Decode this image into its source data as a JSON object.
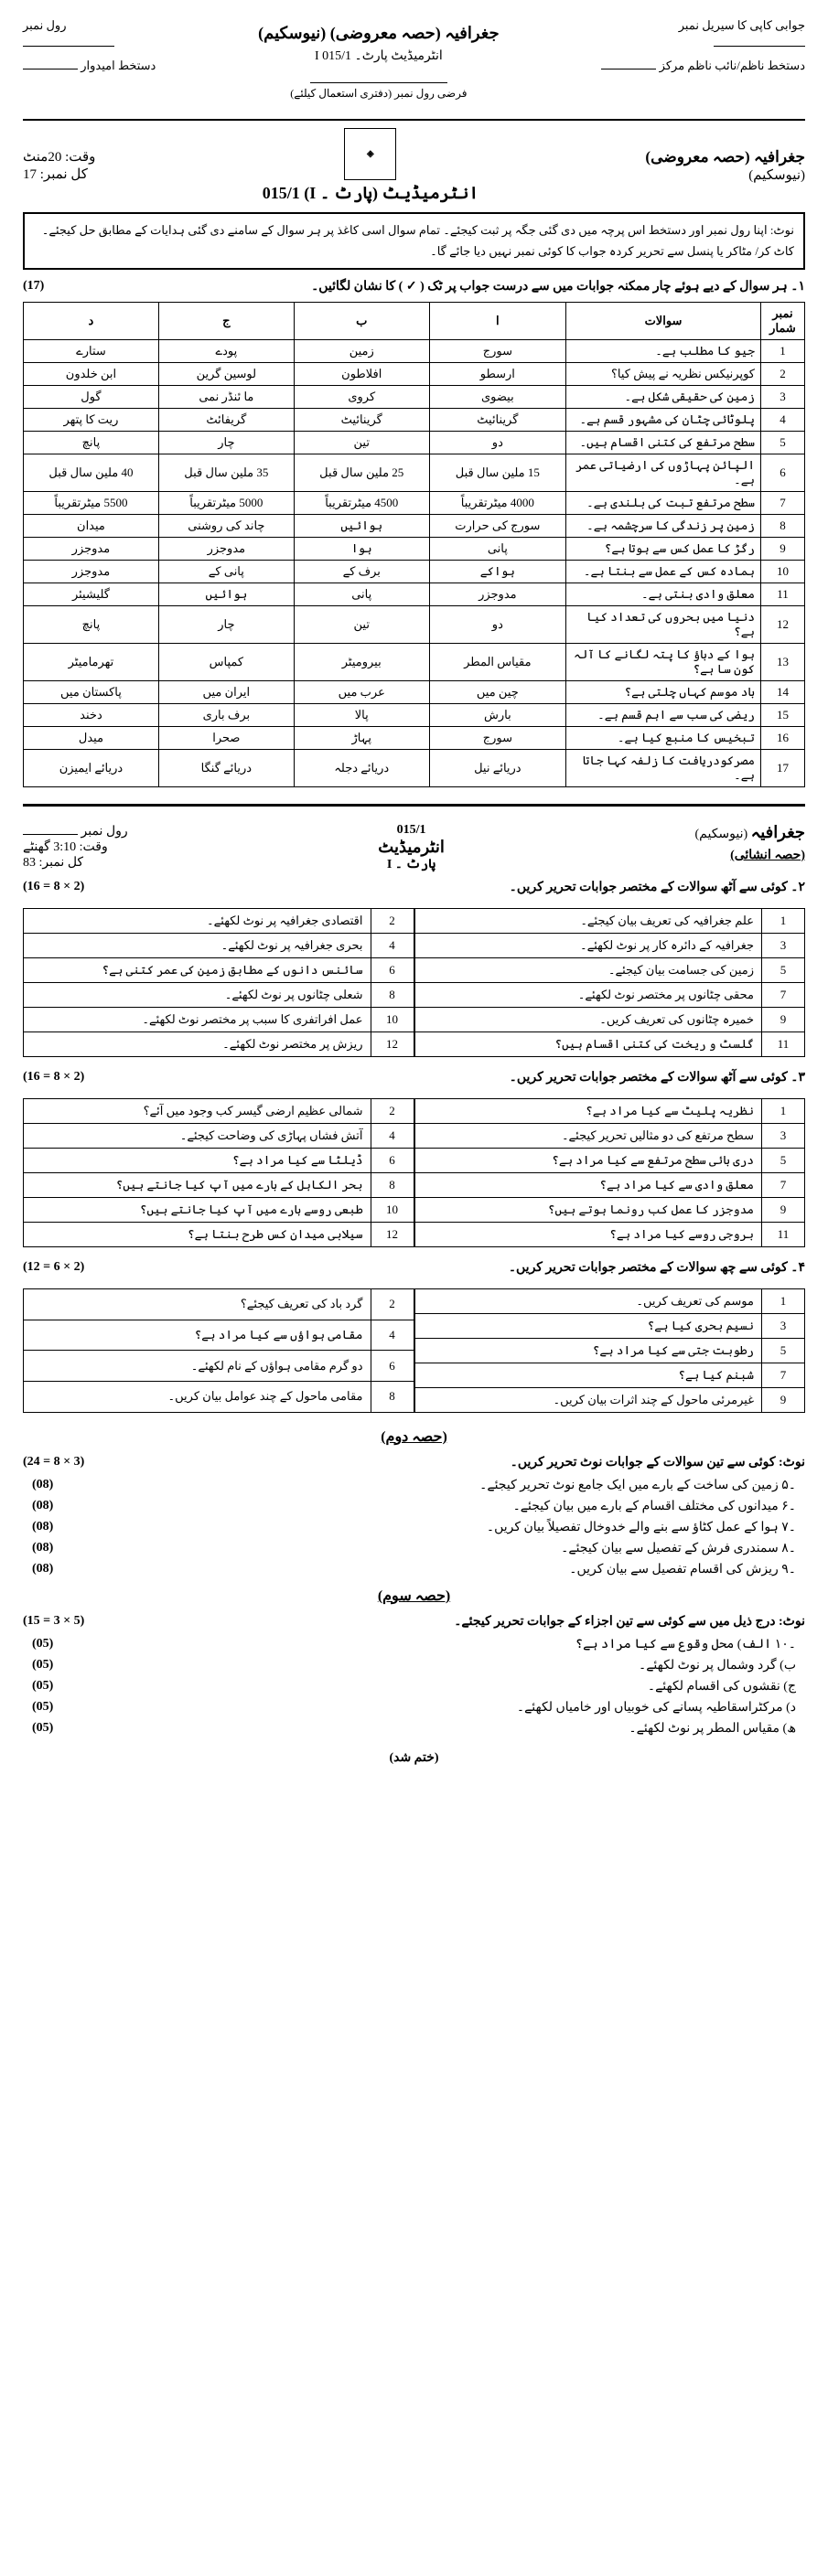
{
  "header_top": {
    "right1": "جوابی کاپی کا سیریل نمبر",
    "right2": "دستخط ناظم/نائب ناظم مرکز",
    "left1": "رول نمبر",
    "left2": "دستخط امیدوار",
    "center1": "جغرافیہ (حصہ معروضی) (نیوسکیم)",
    "center2": "انٹرمیڈیٹ پارٹ۔ I   015/1",
    "center3": "فرضی رول نمبر (دفتری استعمال کیلئے)"
  },
  "ex": {
    "title": "انٹرمیڈیٹ (پارٹ ۔ I)   015/1",
    "subject": "جغرافیہ (حصہ معروضی)",
    "scheme": "(نیوسکیم)",
    "time": "وقت:  20منٹ",
    "marks": "کل نمبر: 17",
    "note": "نوٹ: اپنا رول نمبر اور دستخط اس پرچہ میں دی گئی جگہ پر ثبت کیجئے۔ تمام سوال اسی کاغذ پر ہر سوال کے سامنے دی گئی ہدایات کے مطابق حل کیجئے۔ کاٹ کر/ مٹاکر یا پنسل سے تحریر کردہ جواب کا کوئی نمبر نہیں دیا جائے گا۔",
    "q1": "۱۔ ہر سوال کے دیے ہوئے چار ممکنہ جوابات میں سے درست جواب پر ٹک ( ✓ ) کا نشان لگائیں۔",
    "q1m": "(17)",
    "mcq_head": [
      "نمبر شمار",
      "سوالات",
      "ا",
      "ب",
      "ج",
      "د"
    ],
    "mcq": [
      [
        "1",
        "جیو کا مطلب ہے۔",
        "سورج",
        "زمین",
        "پودے",
        "ستارے"
      ],
      [
        "2",
        "کوپرنیکس نظریہ نے پیش کیا؟",
        "ارسطو",
        "افلاطون",
        "لوسین گرین",
        "ابن خلدون"
      ],
      [
        "3",
        "زمین کی حقیقی شکل ہے۔",
        "بیضوی",
        "کروی",
        "ما ئنڈر نمی",
        "گول"
      ],
      [
        "4",
        "پلوٹائی چٹان کی مشہور قسم ہے۔",
        "گرینائیٹ",
        "گرینائیٹ",
        "گریفائٹ",
        "ریت کا پتھر"
      ],
      [
        "5",
        "سطح مرتفع کی کتنی اقسام ہیں۔",
        "دو",
        "تین",
        "چار",
        "پانچ"
      ],
      [
        "6",
        "الپائن پہاڑوں کی ارضیاتی عمر ہے۔",
        "15 ملین سال قبل",
        "25 ملین سال قبل",
        "35 ملین سال قبل",
        "40 ملین سال قبل"
      ],
      [
        "7",
        "سطح مرتفع تبت کی بلندی ہے۔",
        "4000 میٹرتقریباً",
        "4500 میٹرتقریباً",
        "5000 میٹرتقریباً",
        "5500 میٹرتقریباً"
      ],
      [
        "8",
        "زمین پر زندگی کا سرچشمہ ہے۔",
        "سورج کی حرارت",
        "ہوائیں",
        "چاند کی روشنی",
        "میدان"
      ],
      [
        "9",
        "رگڑ کا عمل کس سے ہوتا ہے؟",
        "پانی",
        "ہوا",
        "مدوجزر",
        "مدوجزر"
      ],
      [
        "10",
        "ہمادہ کس کے عمل سے بنتا ہے۔",
        "ہواکے",
        "برف کے",
        "پانی کے",
        "مدوجزر"
      ],
      [
        "11",
        "معلق وادی بنتی ہے۔",
        "مدوجزر",
        "پانی",
        "ہوائیں",
        "گلیشیئر"
      ],
      [
        "12",
        "دنیا میں بحروں کی تعداد کیا ہے؟",
        "دو",
        "تین",
        "چار",
        "پانچ"
      ],
      [
        "13",
        "ہوا کے دباؤ کا پتہ لگانے کا آلہ کون سا ہے؟",
        "مقیاس المطر",
        "بیرومیٹر",
        "کمپاس",
        "تھرمامیٹر"
      ],
      [
        "14",
        "باد موسم کہاں چلتی ہے؟",
        "چین میں",
        "عرب میں",
        "ایران میں",
        "پاکستان میں"
      ],
      [
        "15",
        "ریضی کی سب سے اہم قسم ہے۔",
        "بارش",
        "پالا",
        "برف باری",
        "دخند"
      ],
      [
        "16",
        "تبخیس کا منبع کیا ہے۔",
        "سورج",
        "پہاڑ",
        "صحرا",
        "میدل"
      ],
      [
        "17",
        "مصرکودریافت کا زلفہ کہا جاتا ہے۔",
        "دریائے نیل",
        "دریائے دجلہ",
        "دریائے گنگا",
        "دریائے ایمیزن"
      ]
    ]
  },
  "p2": {
    "title": "انٹرمیڈیٹ",
    "part": "پارٹ ۔ I",
    "code": "015/1",
    "scheme": "(نیوسکیم)",
    "subject": "جغرافیہ",
    "section": "(حصہ انشائی)",
    "roll": "رول نمبر",
    "time": "وقت: 3:10 گھنٹے",
    "marks": "کل نمبر: 83",
    "q2": "۲۔ کوئی سے آٹھ سوالات کے مختصر جوابات تحریر کریں۔",
    "q2m": "(16 = 8 × 2)",
    "q2r": [
      [
        "1",
        "علم جغرافیہ کی تعریف بیان کیجئے۔"
      ],
      [
        "3",
        "جغرافیہ کے دائرہ کار پر نوٹ لکھئے۔"
      ],
      [
        "5",
        "زمین کی جسامت بیان کیجئے۔"
      ],
      [
        "7",
        "محقی چٹانوں پر مختصر نوٹ لکھئے۔"
      ],
      [
        "9",
        "خمیرہ چٹانوں کی تعریف کریں۔"
      ],
      [
        "11",
        "گلسٹ و ریخت کی کتنی اقسام ہیں؟"
      ]
    ],
    "q2l": [
      [
        "2",
        "اقتصادی جغرافیہ پر نوٹ لکھئے۔"
      ],
      [
        "4",
        "بحری جغرافیہ پر نوٹ لکھئے۔"
      ],
      [
        "6",
        "سائنس دانوں کے مطابق زمین کی عمر کتنی ہے؟"
      ],
      [
        "8",
        "شعلی چٹانوں پر نوٹ لکھئے۔"
      ],
      [
        "10",
        "عمل افراتفری کا سبب پر مختصر نوٹ لکھئے۔"
      ],
      [
        "12",
        "ریزش پر مختصر نوٹ لکھئے۔"
      ]
    ],
    "q3": "۳۔ کوئی سے آٹھ سوالات کے مختصر جوابات تحریر کریں۔",
    "q3m": "(16 = 8 × 2)",
    "q3r": [
      [
        "1",
        "نظریہ پلیٹ سے کیا مراد ہے؟"
      ],
      [
        "3",
        "سطح مرتفع کی دو مثالیں تحریر کیجئے۔"
      ],
      [
        "5",
        "دری بائی سطح مرتفع سے کیا مراد ہے؟"
      ],
      [
        "7",
        "معلق وادی سے کیا مراد ہے؟"
      ],
      [
        "9",
        "مدوجزر کا عمل کب رونما ہوتے ہیں؟"
      ],
      [
        "11",
        "بروجی روسے کیا مراد ہے؟"
      ]
    ],
    "q3l": [
      [
        "2",
        "شمالی عظیم ارضی گیسر کب وجود میں آئے؟"
      ],
      [
        "4",
        "آتش فشاں پہاڑی کی وضاحت کیجئے۔"
      ],
      [
        "6",
        "ڈیلٹا سے کیا مراد ہے؟"
      ],
      [
        "8",
        "بحر الکاہل کے بارے میں آپ کیا جانتے ہیں؟"
      ],
      [
        "10",
        "طبعی روسے بارے میں آپ کیا جانتے ہیں؟"
      ],
      [
        "12",
        "سیلابی میدان کس طرح بنتا ہے؟"
      ]
    ],
    "q4": "۴۔ کوئی سے چھ سوالات کے مختصر جوابات تحریر کریں۔",
    "q4m": "(12 = 6 × 2)",
    "q4r": [
      [
        "1",
        "موسم کی تعریف کریں۔"
      ],
      [
        "3",
        "نسیم بحری کیا ہے؟"
      ],
      [
        "5",
        "رطوبت جتی سے کیا مراد ہے؟"
      ],
      [
        "7",
        "شبنم کیا ہے؟"
      ],
      [
        "9",
        "غیرمرئی ماحول کے چند اثرات بیان کریں۔"
      ]
    ],
    "q4l": [
      [
        "2",
        "گرد باد کی تعریف کیجئے؟"
      ],
      [
        "4",
        "مقامی ہواؤں سے کیا مراد ہے؟"
      ],
      [
        "6",
        "دو گرم مقامی ہواؤں کے نام لکھئے۔"
      ],
      [
        "8",
        "مقامی ماحول کے چند عوامل بیان کریں۔"
      ]
    ],
    "part2": "(حصہ دوم)",
    "n1": "نوٹ:  کوئی سے تین سوالات کے جوابات نوٹ تحریر کریں۔",
    "n1m": "(24 = 8 × 3)",
    "lq": [
      [
        "۔۵",
        "زمین کی ساخت کے بارے میں ایک جامع نوٹ تحریر کیجئے۔",
        "(08)"
      ],
      [
        "۔۶",
        "میدانوں کی مختلف اقسام کے بارے میں بیان کیجئے۔",
        "(08)"
      ],
      [
        "۔۷",
        "ہوا کے عمل کٹاؤ سے بنے والے خدوخال تفصیلاً بیان کریں۔",
        "(08)"
      ],
      [
        "۔۸",
        "سمندری فرش کے تفصیل سے بیان کیجئے۔",
        "(08)"
      ],
      [
        "۔۹",
        "ریزش کی اقسام تفصیل سے بیان کریں۔",
        "(08)"
      ]
    ],
    "part3": "(حصہ سوم)",
    "n2": "نوٹ:  درج ذیل میں سے کوئی سے تین اجزاء کے جوابات تحریر کیجئے۔",
    "n2m": "(15 = 3 × 5)",
    "lq2": [
      [
        "۔۱۰",
        "الف)  محل وقوع سے کیا مراد ہے؟",
        "(05)"
      ],
      [
        "",
        "ب)  گرد وشمال پر نوٹ لکھئے۔",
        "(05)"
      ],
      [
        "",
        "ج)  نقشوں کی اقسام لکھئے۔",
        "(05)"
      ],
      [
        "",
        "د)  مرکٹراسقاطیہ پسانے کی خوبیاں اور خامیاں لکھئے۔",
        "(05)"
      ],
      [
        "",
        "ھ)  مقیاس المطر پر نوٹ لکھئے۔",
        "(05)"
      ]
    ],
    "end": "(ختم شد)"
  }
}
